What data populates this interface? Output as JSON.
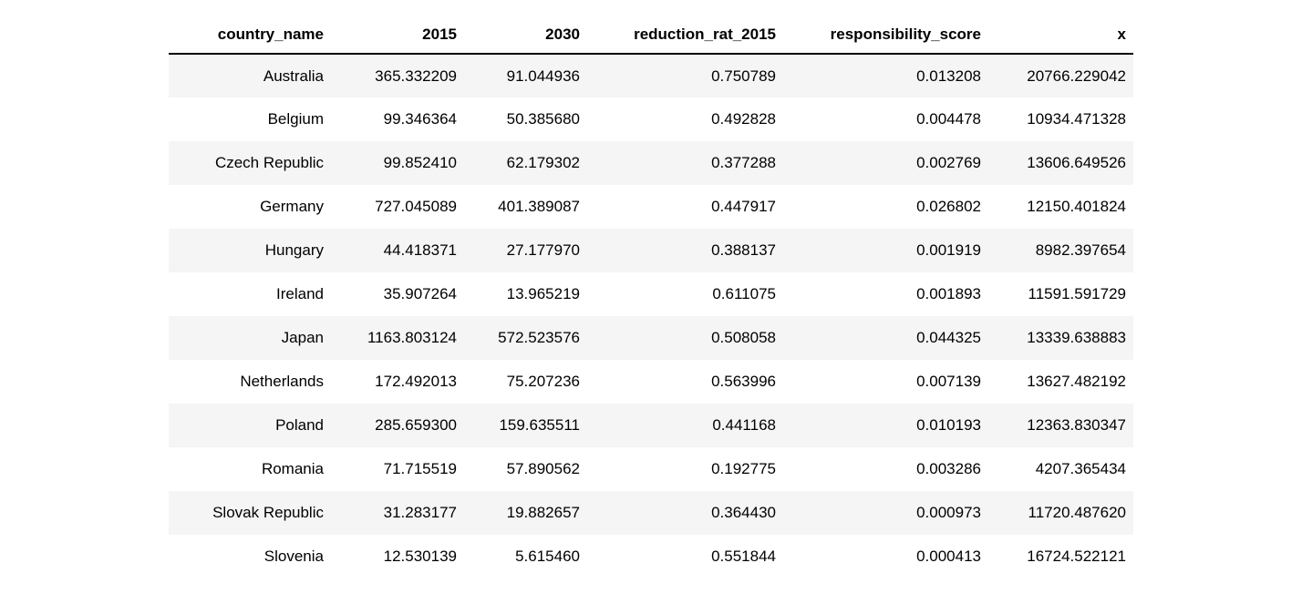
{
  "chart_data": {
    "type": "table",
    "title": "",
    "columns": [
      "country_name",
      "2015",
      "2030",
      "reduction_rat_2015",
      "responsibility_score",
      "x"
    ],
    "rows": [
      [
        "Australia",
        "365.332209",
        "91.044936",
        "0.750789",
        "0.013208",
        "20766.229042"
      ],
      [
        "Belgium",
        "99.346364",
        "50.385680",
        "0.492828",
        "0.004478",
        "10934.471328"
      ],
      [
        "Czech Republic",
        "99.852410",
        "62.179302",
        "0.377288",
        "0.002769",
        "13606.649526"
      ],
      [
        "Germany",
        "727.045089",
        "401.389087",
        "0.447917",
        "0.026802",
        "12150.401824"
      ],
      [
        "Hungary",
        "44.418371",
        "27.177970",
        "0.388137",
        "0.001919",
        "8982.397654"
      ],
      [
        "Ireland",
        "35.907264",
        "13.965219",
        "0.611075",
        "0.001893",
        "11591.591729"
      ],
      [
        "Japan",
        "1163.803124",
        "572.523576",
        "0.508058",
        "0.044325",
        "13339.638883"
      ],
      [
        "Netherlands",
        "172.492013",
        "75.207236",
        "0.563996",
        "0.007139",
        "13627.482192"
      ],
      [
        "Poland",
        "285.659300",
        "159.635511",
        "0.441168",
        "0.010193",
        "12363.830347"
      ],
      [
        "Romania",
        "71.715519",
        "57.890562",
        "0.192775",
        "0.003286",
        "4207.365434"
      ],
      [
        "Slovak Republic",
        "31.283177",
        "19.882657",
        "0.364430",
        "0.000973",
        "11720.487620"
      ],
      [
        "Slovenia",
        "12.530139",
        "5.615460",
        "0.551844",
        "0.000413",
        "16724.522121"
      ]
    ],
    "layout": {
      "alignment": "right",
      "striped_rows": "odd",
      "header_style": "bold-with-bottom-border"
    },
    "colors": {
      "background": "#ffffff",
      "row_stripe": "#f5f5f5",
      "text": "#000000",
      "header_border": "#000000"
    }
  }
}
